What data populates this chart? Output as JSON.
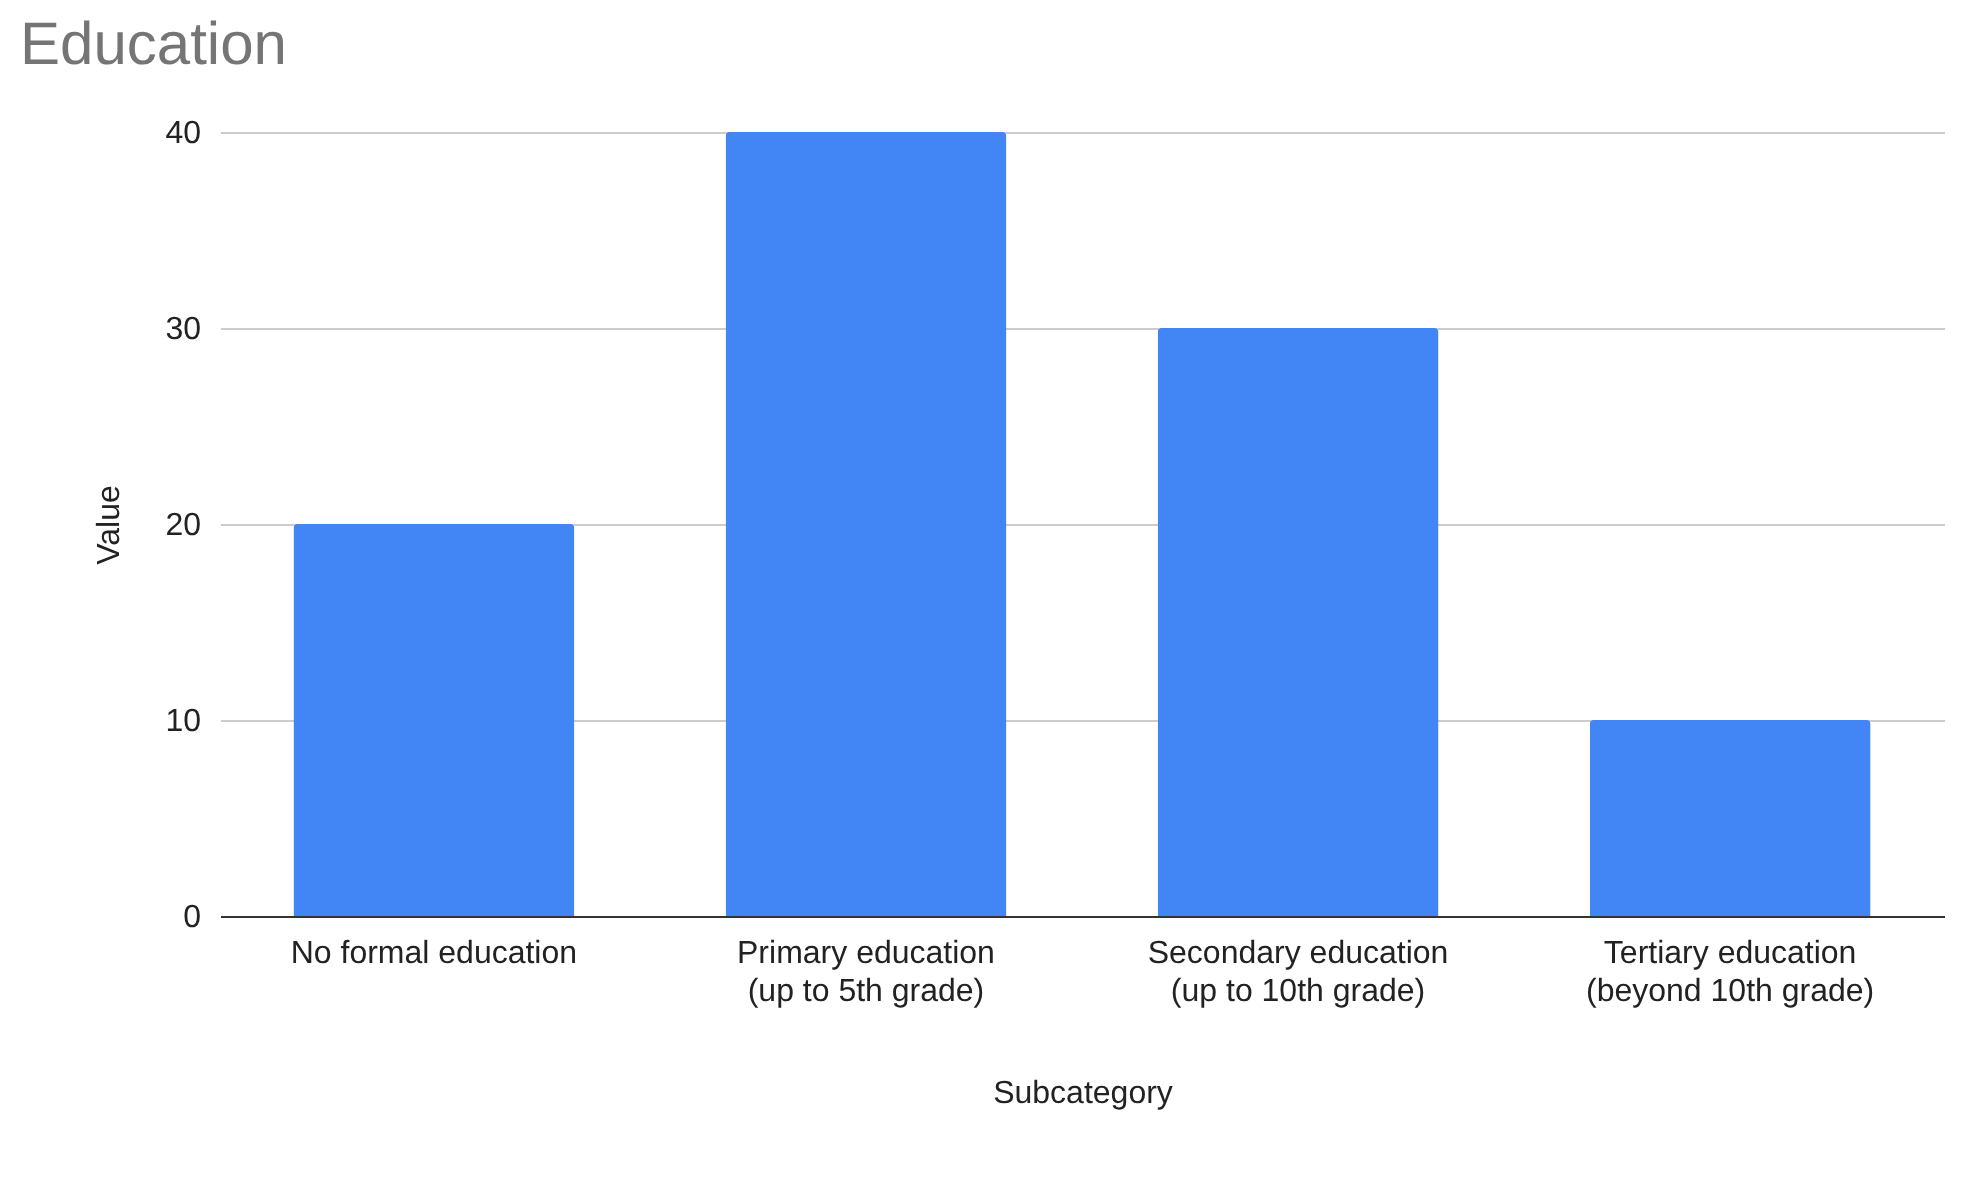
{
  "chart_data": {
    "type": "bar",
    "title": "Education",
    "xlabel": "Subcategory",
    "ylabel": "Value",
    "categories": [
      "No formal education",
      "Primary education (up to 5th grade)",
      "Secondary education (up to 10th grade)",
      "Tertiary education (beyond 10th grade)"
    ],
    "values": [
      20,
      40,
      30,
      10
    ],
    "color": "#4285f4",
    "ylim": [
      0,
      40
    ],
    "yticks": [
      0,
      10,
      20,
      30,
      40
    ],
    "grid": "y"
  }
}
